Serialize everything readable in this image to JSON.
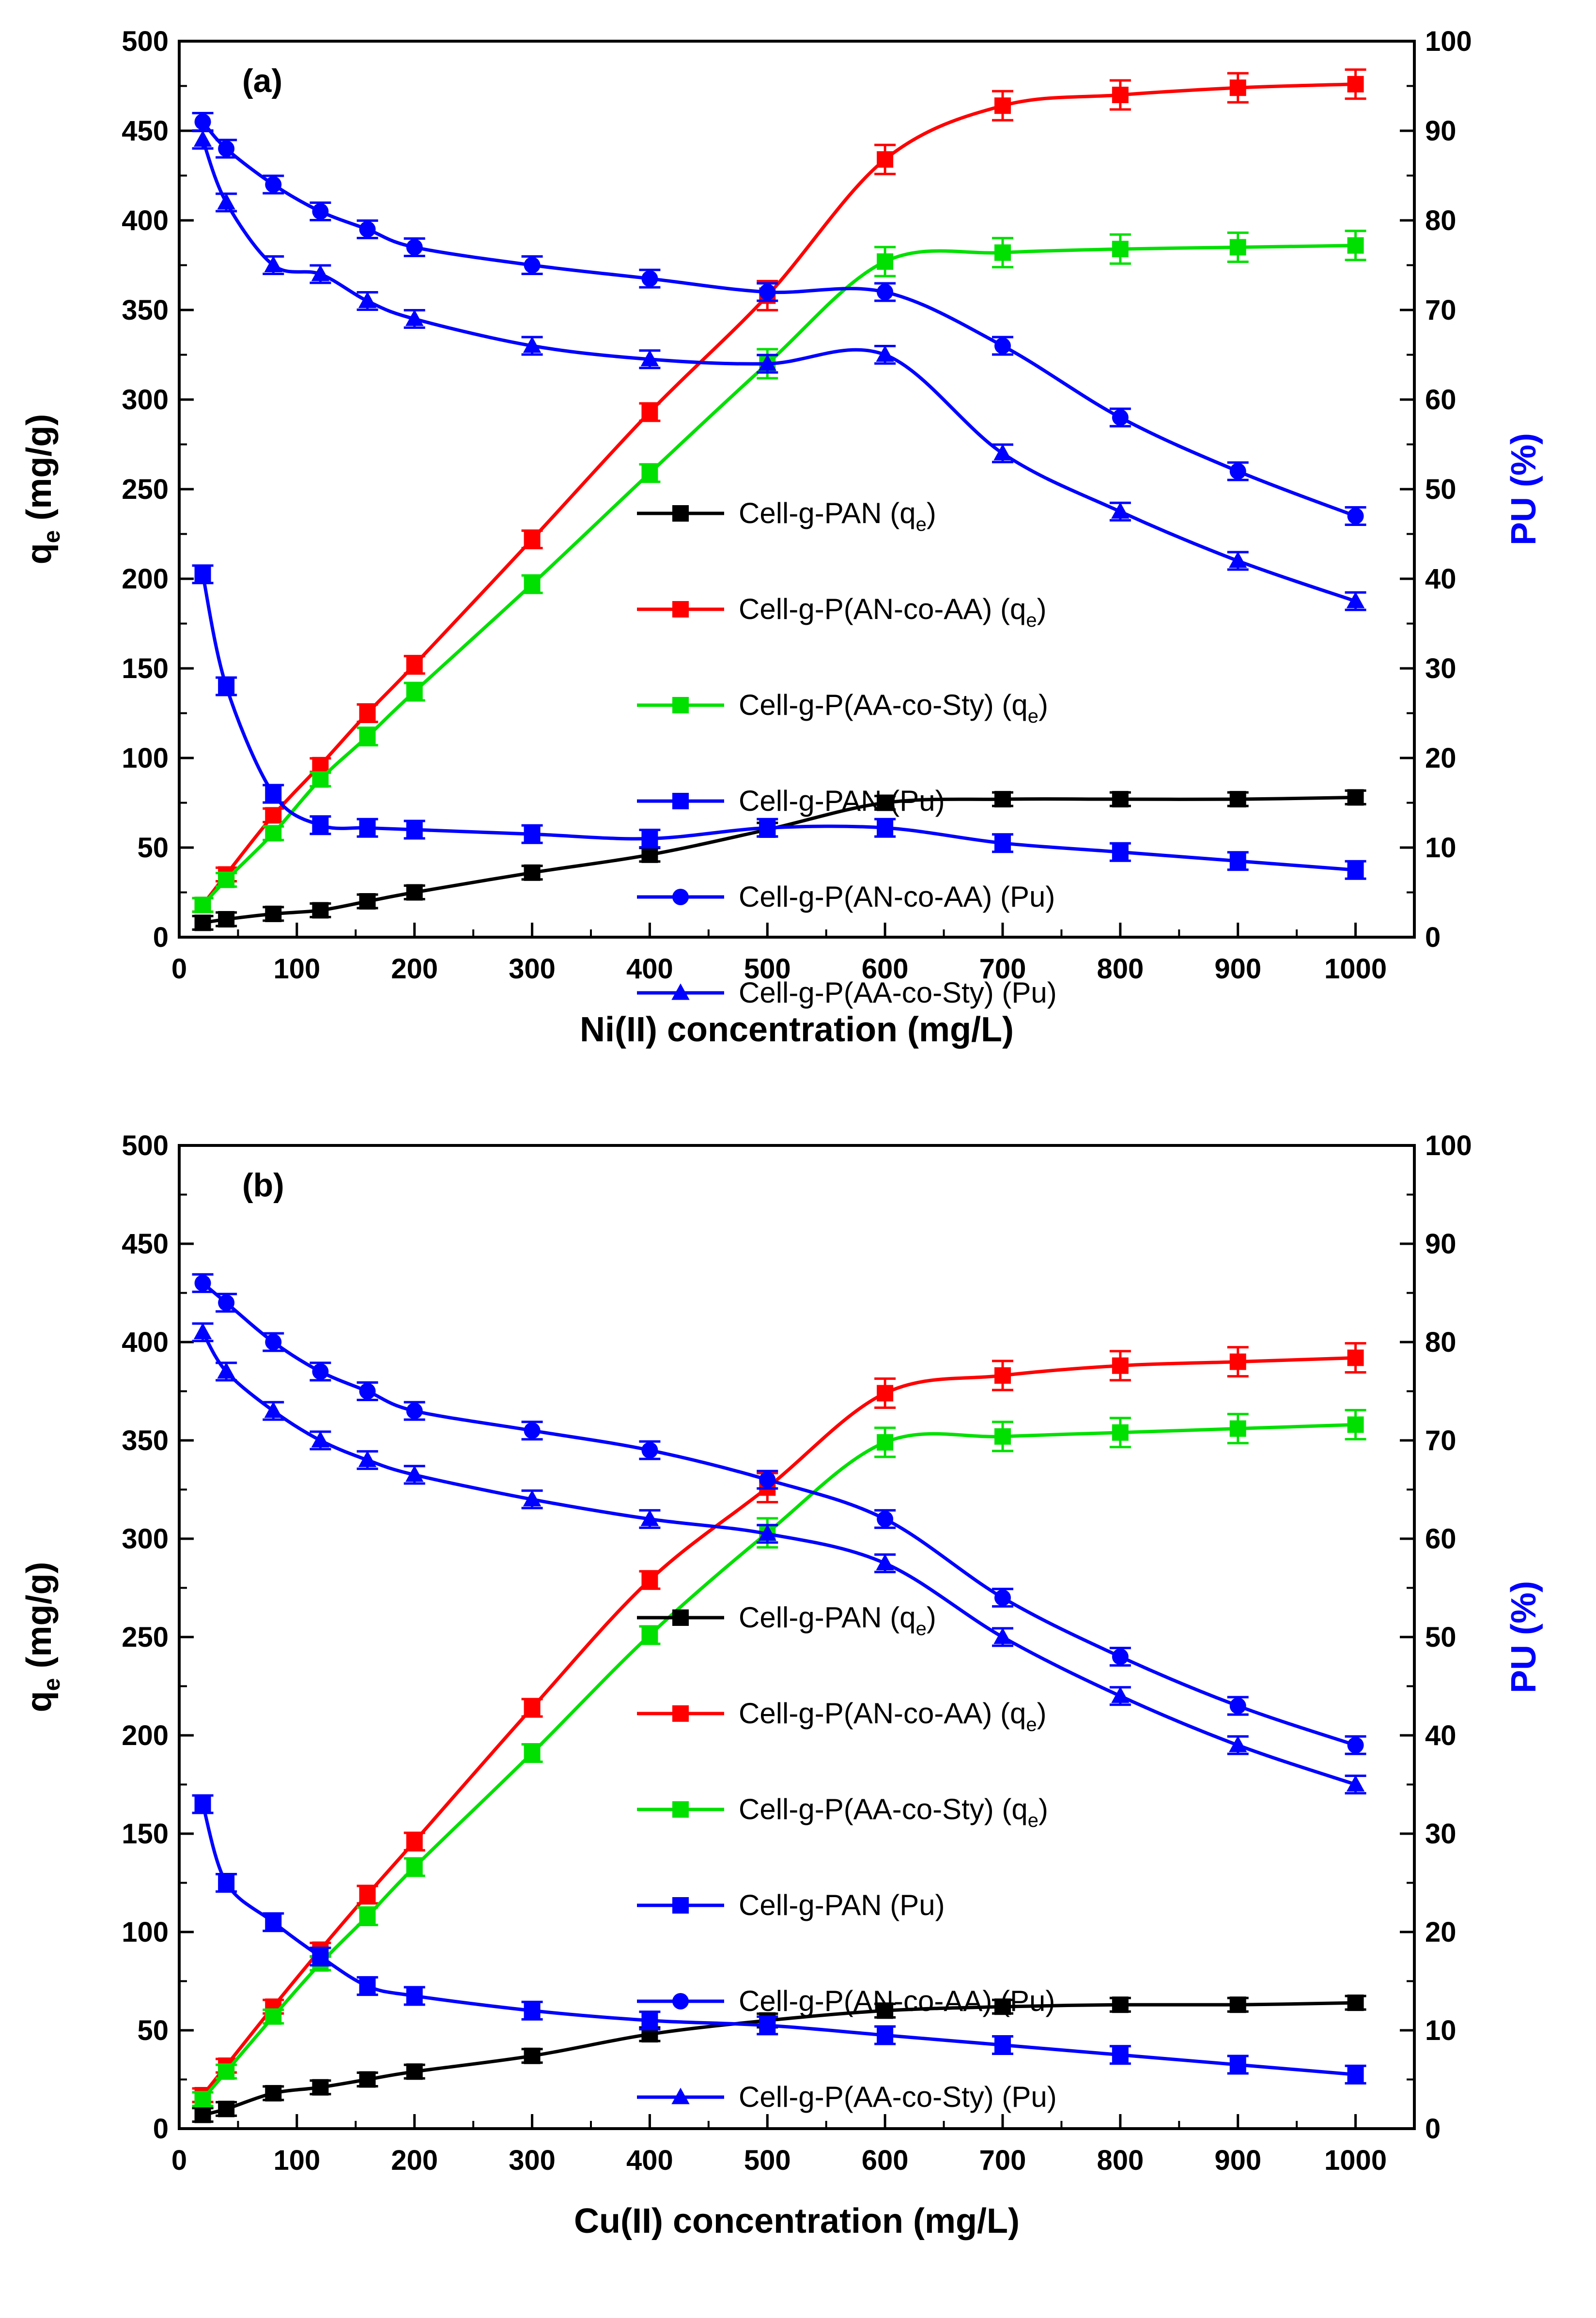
{
  "figure": {
    "colors": {
      "black": "#000000",
      "red": "#ff0000",
      "green": "#00e000",
      "blue": "#0000ff"
    }
  },
  "chart_data": [
    {
      "type": "line",
      "panel_label": "(a)",
      "xlabel": "Ni(II) concentration (mg/L)",
      "ylabel": "q",
      "ylabel_sub": "e",
      "ylabel_unit": " (mg/g)",
      "y2label": "PU (%)",
      "xlim": [
        0,
        1050
      ],
      "ylim": [
        0,
        500
      ],
      "y2lim": [
        0,
        100
      ],
      "xticks": [
        "0",
        "100",
        "200",
        "300",
        "400",
        "500",
        "600",
        "700",
        "800",
        "900",
        "1000"
      ],
      "yticks": [
        "0",
        "50",
        "100",
        "150",
        "200",
        "250",
        "300",
        "350",
        "400",
        "450",
        "500"
      ],
      "y2ticks": [
        "0",
        "10",
        "20",
        "30",
        "40",
        "50",
        "60",
        "70",
        "80",
        "90",
        "100"
      ],
      "x": [
        20,
        40,
        80,
        120,
        160,
        200,
        300,
        400,
        500,
        600,
        700,
        800,
        900,
        1000
      ],
      "series": [
        {
          "name": "Cell-g-PAN (q",
          "sub": "e",
          "close": ")",
          "color": "#000000",
          "axis": "left",
          "marker": "square",
          "values": [
            8,
            10,
            13,
            15,
            20,
            25,
            36,
            46,
            60,
            75,
            77,
            77,
            77,
            78
          ]
        },
        {
          "name": "Cell-g-P(AN-co-AA) (q",
          "sub": "e",
          "close": ")",
          "color": "#ff0000",
          "axis": "left",
          "marker": "square",
          "values": [
            18,
            35,
            68,
            96,
            125,
            152,
            222,
            293,
            358,
            434,
            464,
            470,
            474,
            476
          ]
        },
        {
          "name": "Cell-g-P(AA-co-Sty) (q",
          "sub": "e",
          "close": ")",
          "color": "#00e000",
          "axis": "left",
          "marker": "square",
          "values": [
            18,
            32,
            58,
            88,
            112,
            137,
            197,
            259,
            320,
            377,
            382,
            384,
            385,
            386
          ]
        },
        {
          "name": "Cell-g-PAN (Pu)",
          "sub": "",
          "close": "",
          "color": "#0000ff",
          "axis": "right",
          "marker": "square",
          "values": [
            40.5,
            28,
            16,
            12.5,
            12.2,
            12,
            11.5,
            11,
            12.2,
            12.2,
            10.5,
            9.5,
            8.5,
            7.5
          ]
        },
        {
          "name": "Cell-g-P(AN-co-AA) (Pu)",
          "sub": "",
          "close": "",
          "color": "#0000ff",
          "axis": "right",
          "marker": "circle",
          "values": [
            91,
            88,
            84,
            81,
            79,
            77,
            75,
            73.5,
            72,
            72,
            66,
            58,
            52,
            47
          ]
        },
        {
          "name": "Cell-g-P(AA-co-Sty) (Pu)",
          "sub": "",
          "close": "",
          "color": "#0000ff",
          "axis": "right",
          "marker": "triangle",
          "values": [
            89,
            82,
            75,
            74,
            71,
            69,
            66,
            64.5,
            64,
            65,
            54,
            47.5,
            42,
            37.5
          ]
        }
      ]
    },
    {
      "type": "line",
      "panel_label": "(b)",
      "xlabel": "Cu(II) concentration (mg/L)",
      "ylabel": "q",
      "ylabel_sub": "e",
      "ylabel_unit": " (mg/g)",
      "y2label": "PU (%)",
      "xlim": [
        0,
        1050
      ],
      "ylim": [
        0,
        500
      ],
      "y2lim": [
        0,
        100
      ],
      "xticks": [
        "0",
        "100",
        "200",
        "300",
        "400",
        "500",
        "600",
        "700",
        "800",
        "900",
        "1000"
      ],
      "yticks": [
        "0",
        "50",
        "100",
        "150",
        "200",
        "250",
        "300",
        "350",
        "400",
        "450",
        "500"
      ],
      "y2ticks": [
        "0",
        "10",
        "20",
        "30",
        "40",
        "50",
        "60",
        "70",
        "80",
        "90",
        "100"
      ],
      "x": [
        20,
        40,
        80,
        120,
        160,
        200,
        300,
        400,
        500,
        600,
        700,
        800,
        900,
        1000
      ],
      "series": [
        {
          "name": "Cell-g-PAN (q",
          "sub": "e",
          "close": ")",
          "color": "#000000",
          "axis": "left",
          "marker": "square",
          "values": [
            7,
            10,
            18,
            21,
            25,
            29,
            37,
            48,
            55,
            60,
            62,
            63,
            63,
            64
          ]
        },
        {
          "name": "Cell-g-P(AN-co-AA) (q",
          "sub": "e",
          "close": ")",
          "color": "#ff0000",
          "axis": "left",
          "marker": "square",
          "values": [
            17,
            32,
            62,
            91,
            119,
            146,
            214,
            279,
            326,
            374,
            383,
            388,
            390,
            392
          ]
        },
        {
          "name": "Cell-g-P(AA-co-Sty) (q",
          "sub": "e",
          "close": ")",
          "color": "#00e000",
          "axis": "left",
          "marker": "square",
          "values": [
            15,
            29,
            57,
            84,
            108,
            133,
            191,
            251,
            303,
            349,
            352,
            354,
            356,
            358
          ]
        },
        {
          "name": "Cell-g-PAN (Pu)",
          "sub": "",
          "close": "",
          "color": "#0000ff",
          "axis": "right",
          "marker": "square",
          "values": [
            33,
            25,
            21,
            17.5,
            14.5,
            13.5,
            12,
            11,
            10.5,
            9.5,
            8.5,
            7.5,
            6.5,
            5.5
          ]
        },
        {
          "name": "Cell-g-P(AN-co-AA) (Pu)",
          "sub": "",
          "close": "",
          "color": "#0000ff",
          "axis": "right",
          "marker": "circle",
          "values": [
            86,
            84,
            80,
            77,
            75,
            73,
            71,
            69,
            66,
            62,
            54,
            48,
            43,
            39
          ]
        },
        {
          "name": "Cell-g-P(AA-co-Sty) (Pu)",
          "sub": "",
          "close": "",
          "color": "#0000ff",
          "axis": "right",
          "marker": "triangle",
          "values": [
            81,
            77,
            73,
            70,
            68,
            66.5,
            64,
            62,
            60.5,
            57.5,
            50,
            44,
            39,
            35
          ]
        }
      ]
    }
  ]
}
